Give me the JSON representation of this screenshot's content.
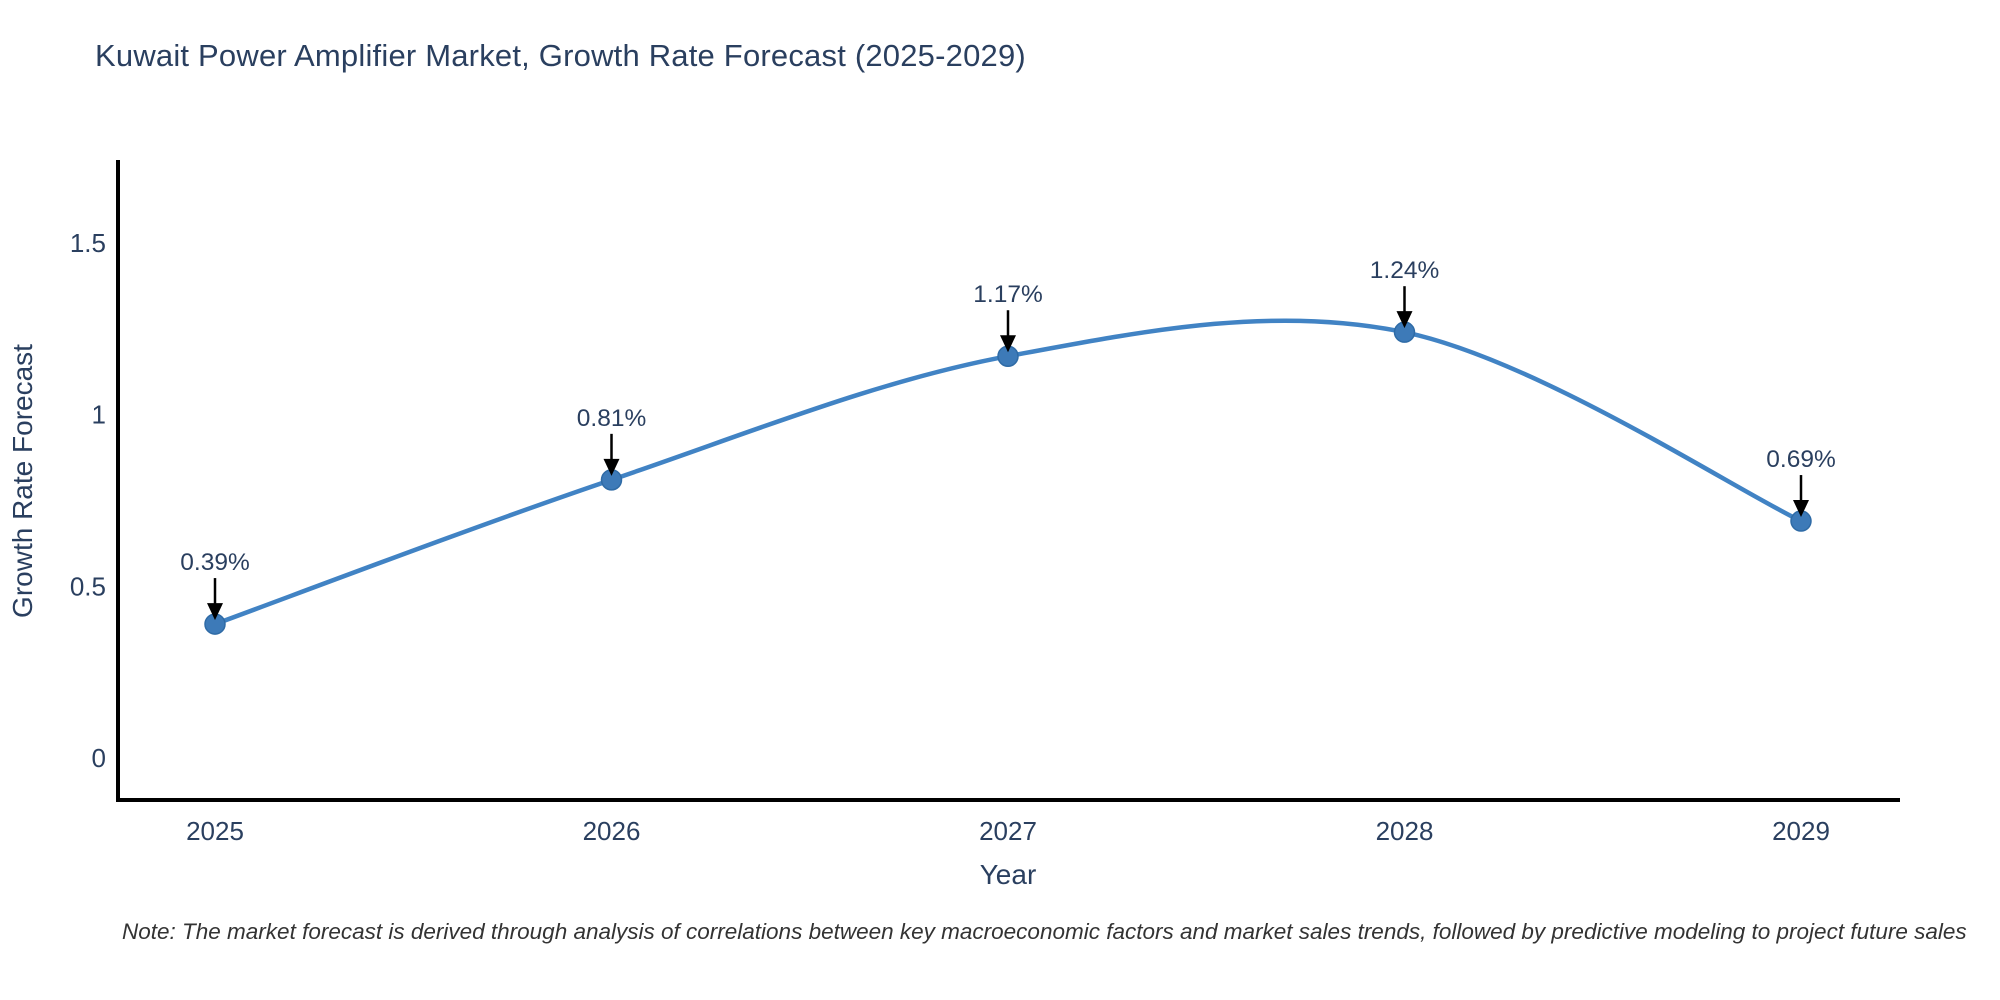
{
  "title": "Kuwait Power Amplifier Market, Growth Rate Forecast (2025-2029)",
  "note": "Note: The market forecast is derived through analysis of correlations between key macroeconomic factors and market sales trends, followed by predictive modeling to project future sales",
  "chart_data": {
    "type": "line",
    "title": "Kuwait Power Amplifier Market, Growth Rate Forecast (2025-2029)",
    "x": [
      2025,
      2026,
      2027,
      2028,
      2029
    ],
    "values": [
      0.39,
      0.81,
      1.17,
      1.24,
      0.69
    ],
    "point_labels": [
      "0.39%",
      "0.81%",
      "1.17%",
      "1.24%",
      "0.69%"
    ],
    "xlabel": "Year",
    "ylabel": "Growth Rate Forecast",
    "xticks": [
      "2025",
      "2026",
      "2027",
      "2028",
      "2029"
    ],
    "yticks": [
      0,
      0.5,
      1,
      1.5
    ],
    "ytick_labels": [
      "0",
      "0.5",
      "1",
      "1.5"
    ],
    "ylim": [
      -0.12,
      1.74
    ],
    "grid": false,
    "legend": "none",
    "line_style": "spline",
    "colors": {
      "line": "#4183c4",
      "marker": "#3d7ab8",
      "marker_edge": "#2f6ba6",
      "axis": "#000000",
      "text": "#2a3f5f",
      "arrow": "#000000"
    }
  }
}
